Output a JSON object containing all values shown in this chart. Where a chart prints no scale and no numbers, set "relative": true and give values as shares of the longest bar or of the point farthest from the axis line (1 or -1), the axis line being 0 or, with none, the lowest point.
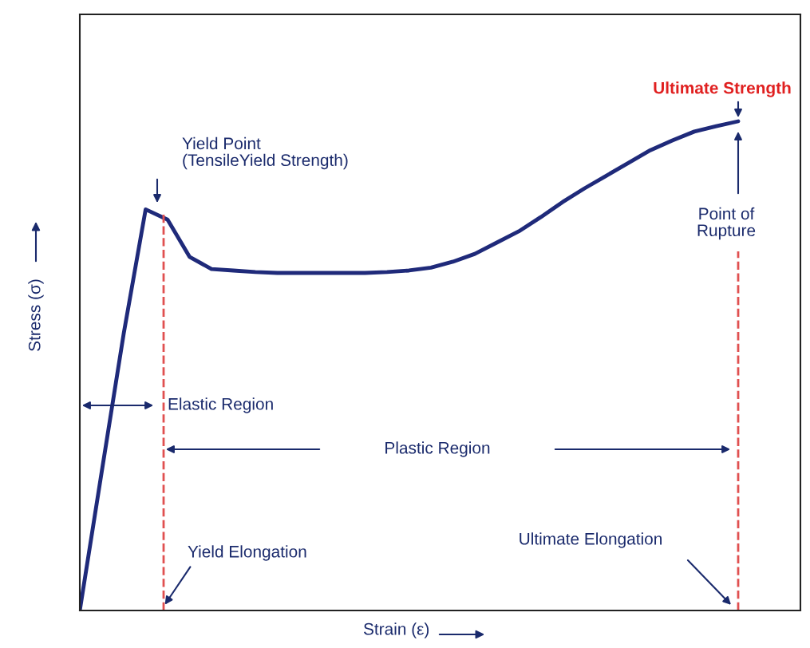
{
  "chart_data": {
    "type": "line",
    "relative": true,
    "xlabel": "Strain (ε)",
    "ylabel": "Stress (σ)",
    "categories": [
      null,
      null,
      null,
      null,
      null,
      null,
      null,
      null,
      null,
      null,
      null,
      null,
      null,
      null,
      null,
      null,
      null,
      null,
      null,
      null,
      null,
      null,
      null,
      null,
      null,
      null,
      null,
      null,
      null,
      null,
      null
    ],
    "series": [
      {
        "color": "#1f2a7a",
        "values": [
          0,
          0.284,
          0.566,
          0.82,
          0.799,
          0.723,
          0.698,
          0.695,
          0.692,
          0.69,
          0.69,
          0.69,
          0.69,
          0.69,
          0.692,
          0.695,
          0.701,
          0.713,
          0.729,
          0.752,
          0.775,
          0.804,
          0.835,
          0.863,
          0.889,
          0.915,
          0.941,
          0.961,
          0.979,
          0.99,
          1.0
        ]
      }
    ],
    "annotations": [
      "Ultimate Strength",
      "Yield Point\n(TensileYield Strength)",
      "Point of\nRupture",
      "Elastic Region",
      "Plastic Region",
      "Yield Elongation",
      "Ultimate Elongation"
    ],
    "marker": "none",
    "line_style": "solid"
  }
}
